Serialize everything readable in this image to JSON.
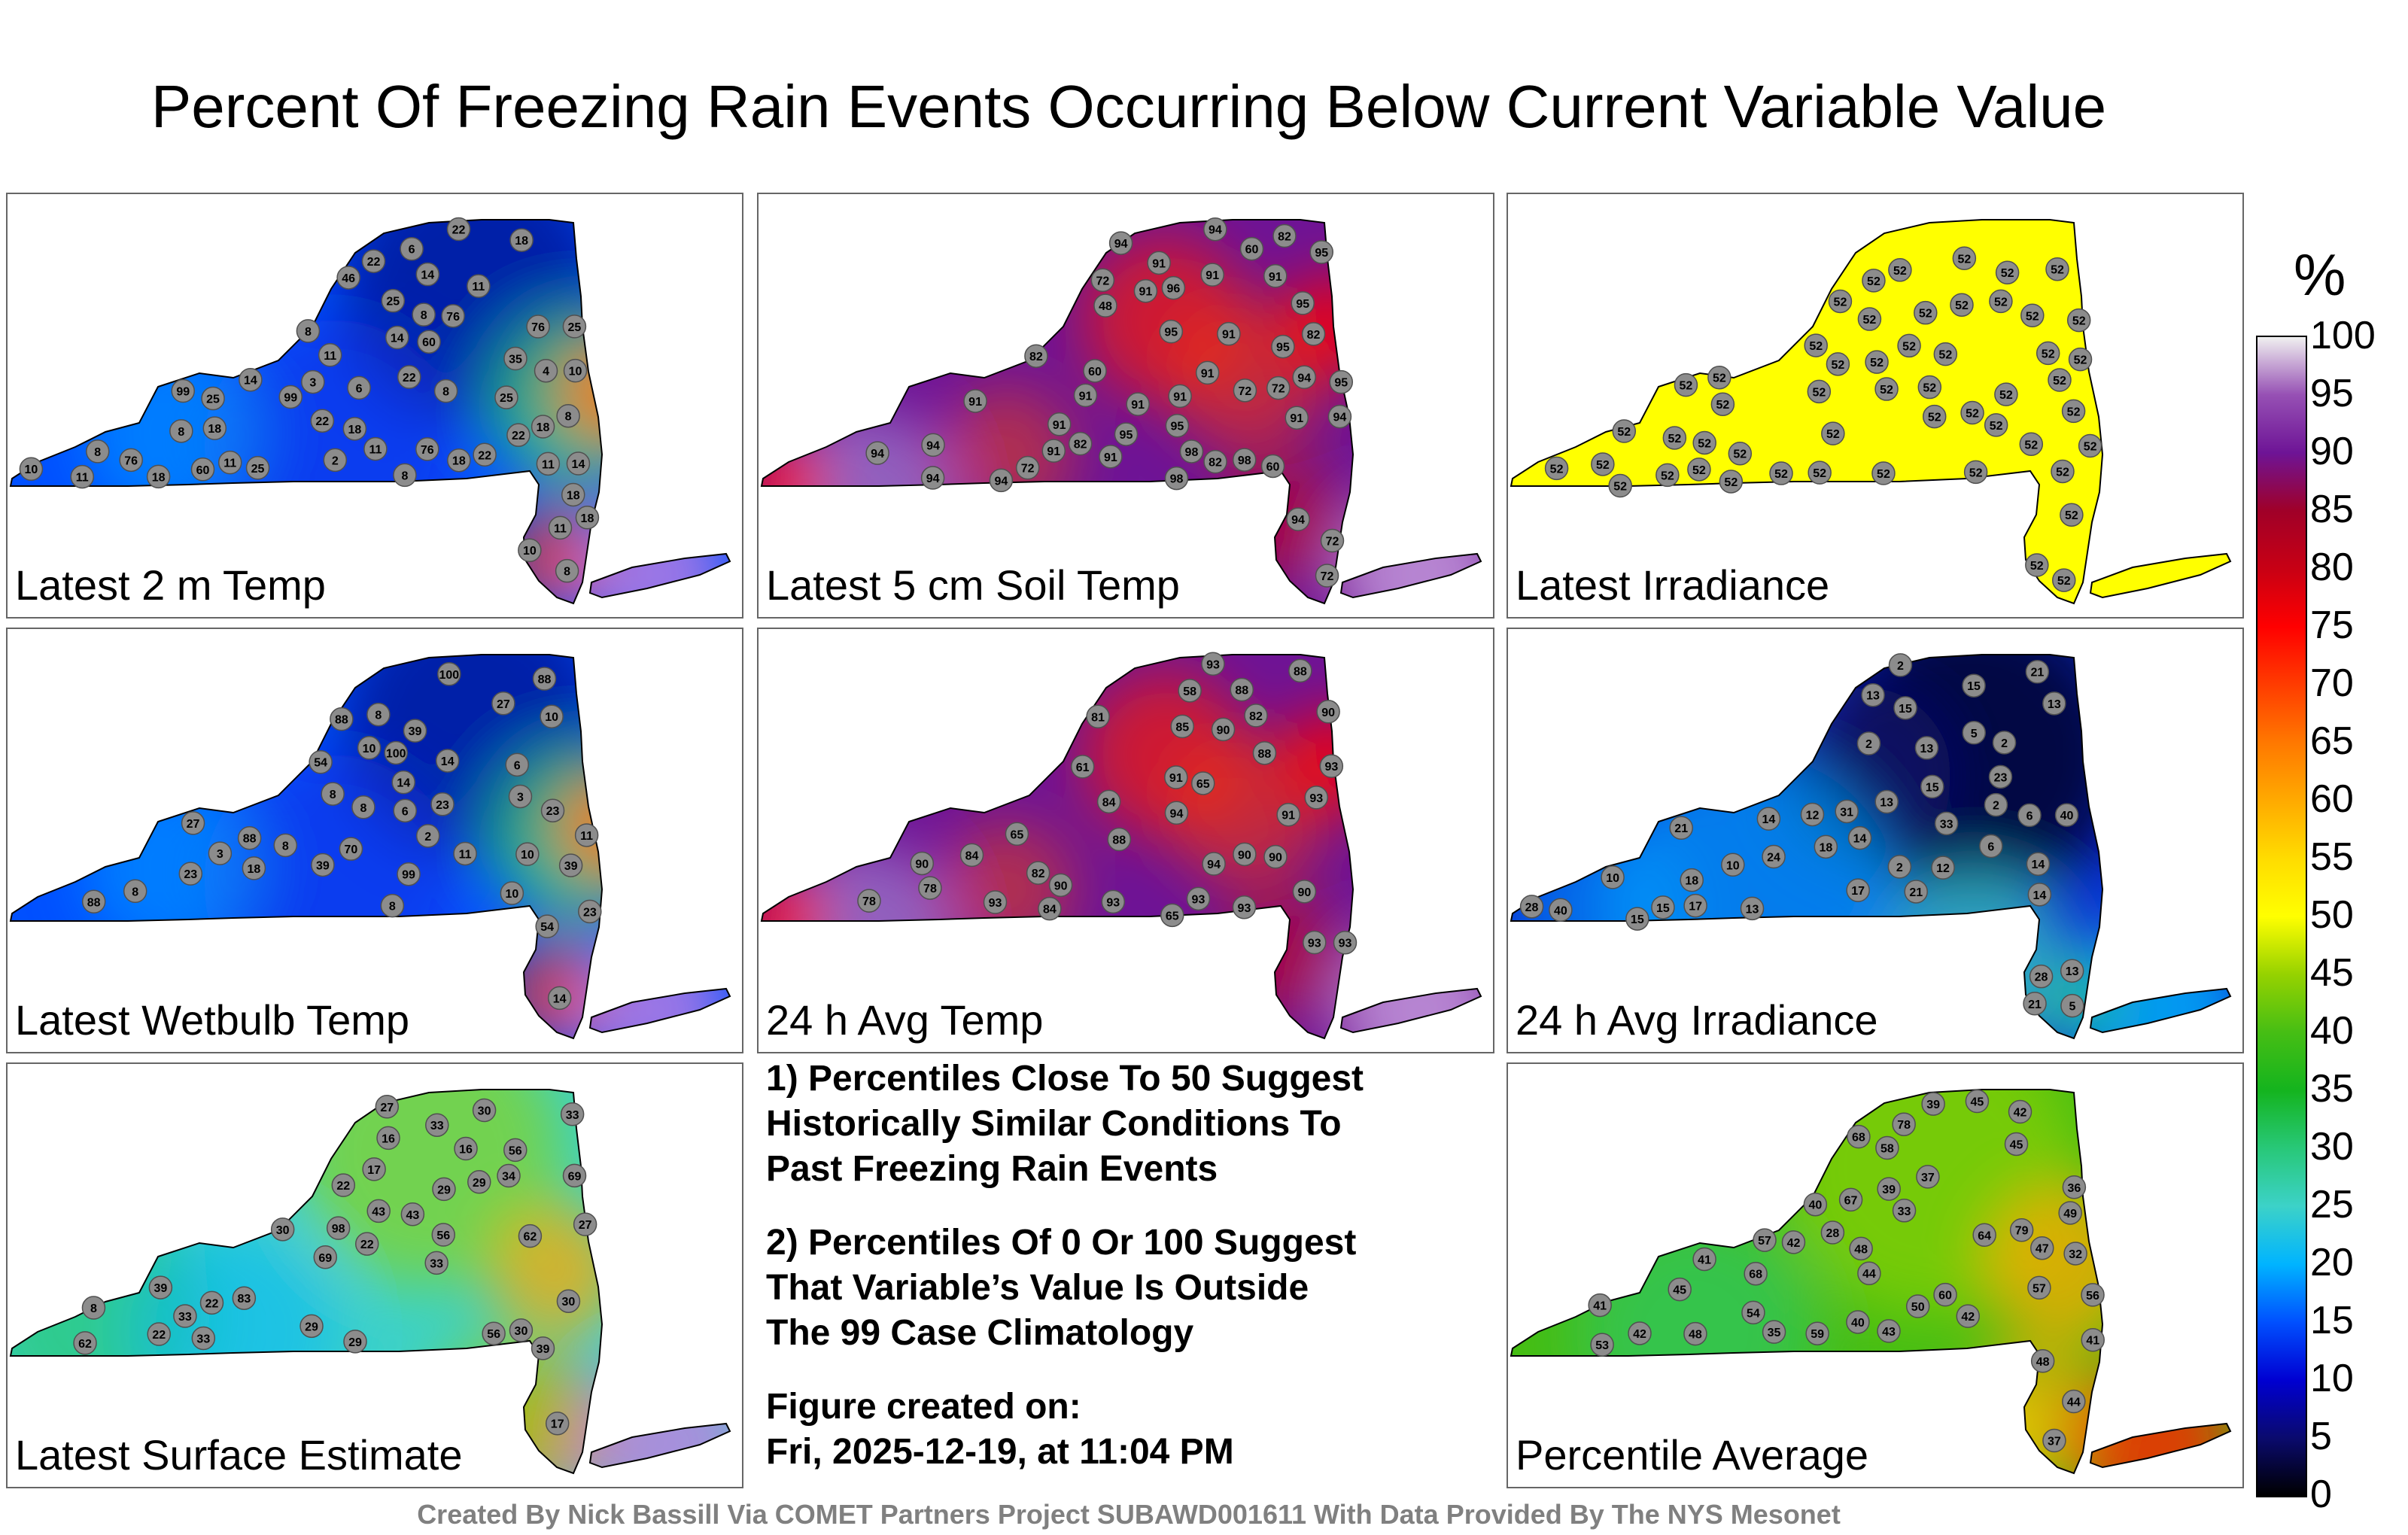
{
  "title": "Percent Of Freezing Rain Events Occurring Below Current Variable Value",
  "panels": [
    {
      "label": "Latest 2 m Temp",
      "palette": "cool",
      "values": [
        "25",
        "14",
        "11",
        "18",
        "22",
        "22",
        "11",
        "25",
        "18",
        "22",
        "25",
        "18",
        "11",
        "18",
        "11",
        "14",
        "18",
        "22",
        "3",
        "4",
        "8",
        "8",
        "2",
        "6",
        "6",
        "14",
        "8",
        "11",
        "10",
        "10",
        "18",
        "8",
        "11",
        "14",
        "11",
        "18",
        "8",
        "8",
        "8",
        "8",
        "10",
        "22",
        "18",
        "22",
        "25",
        "60",
        "76",
        "76",
        "25",
        "46",
        "60",
        "35",
        "76",
        "99",
        "99",
        "76"
      ]
    },
    {
      "label": "Latest 5 cm Soil Temp",
      "palette": "warm",
      "values": [
        "91",
        "95",
        "91",
        "94",
        "95",
        "91",
        "95",
        "72",
        "94",
        "91",
        "72",
        "72",
        "91",
        "94",
        "94",
        "91",
        "91",
        "94",
        "95",
        "82",
        "91",
        "48",
        "91",
        "91",
        "94",
        "95",
        "94",
        "91",
        "94",
        "91",
        "60",
        "72",
        "60",
        "82",
        "96",
        "72",
        "60",
        "72",
        "82",
        "95",
        "94",
        "91",
        "82",
        "91",
        "95",
        "82",
        "98",
        "98",
        "98"
      ]
    },
    {
      "label": "Latest Irradiance",
      "palette": "flat",
      "values": [
        "52",
        "52",
        "52",
        "52",
        "52",
        "52",
        "52",
        "52",
        "52",
        "52",
        "52",
        "52",
        "52",
        "52",
        "52",
        "52",
        "52",
        "52",
        "52",
        "52",
        "52",
        "52",
        "52",
        "52",
        "52",
        "52",
        "52",
        "52",
        "52",
        "52",
        "52",
        "52",
        "52",
        "52",
        "52",
        "52",
        "52",
        "52",
        "52",
        "52",
        "52",
        "52",
        "52",
        "52",
        "52",
        "52",
        "52",
        "52",
        "52",
        "52",
        "52",
        "52"
      ]
    },
    {
      "label": "Latest Wetbulb Temp",
      "palette": "cool",
      "values": [
        "27",
        "14",
        "23",
        "27",
        "14",
        "18",
        "39",
        "11",
        "23",
        "10",
        "10",
        "14",
        "8",
        "8",
        "3",
        "3",
        "6",
        "8",
        "2",
        "6",
        "10",
        "11",
        "8",
        "8",
        "8",
        "10",
        "23",
        "39",
        "54",
        "88",
        "99",
        "88",
        "70",
        "54",
        "39",
        "23",
        "100",
        "100",
        "88",
        "88"
      ]
    },
    {
      "label": "24 h Avg Temp",
      "palette": "warm",
      "values": [
        "88",
        "85",
        "88",
        "91",
        "84",
        "78",
        "65",
        "61",
        "82",
        "65",
        "58",
        "65",
        "78",
        "84",
        "90",
        "88",
        "90",
        "90",
        "90",
        "84",
        "82",
        "88",
        "93",
        "93",
        "93",
        "90",
        "90",
        "90",
        "91",
        "93",
        "93",
        "94",
        "94",
        "93",
        "93",
        "93",
        "93",
        "81"
      ]
    },
    {
      "label": "24 h Avg Irradiance",
      "palette": "dark",
      "values": [
        "6",
        "2",
        "14",
        "14",
        "13",
        "2",
        "2",
        "10",
        "2",
        "5",
        "5",
        "2",
        "12",
        "13",
        "12",
        "15",
        "13",
        "21",
        "10",
        "15",
        "13",
        "28",
        "17",
        "15",
        "15",
        "6",
        "14",
        "18",
        "13",
        "14",
        "23",
        "24",
        "33",
        "21",
        "18",
        "13",
        "31",
        "28",
        "21",
        "17",
        "40",
        "40",
        "21",
        "15"
      ]
    },
    {
      "label": "Latest Surface Estimate",
      "palette": "surf",
      "values": [
        "29",
        "22",
        "29",
        "30",
        "17",
        "33",
        "30",
        "33",
        "43",
        "39",
        "30",
        "29",
        "34",
        "33",
        "39",
        "33",
        "29",
        "27",
        "22",
        "17",
        "8",
        "22",
        "30",
        "16",
        "16",
        "22",
        "27",
        "33",
        "43",
        "56",
        "62",
        "62",
        "69",
        "83",
        "98",
        "56",
        "56",
        "69"
      ]
    }
  ],
  "notes": {
    "item1_line1": "1) Percentiles Close To 50 Suggest",
    "item1_line2": "Historically Similar Conditions To",
    "item1_line3": "Past Freezing Rain Events",
    "item2_line1": "2) Percentiles Of 0 Or 100 Suggest",
    "item2_line2": "That Variable’s Value Is Outside",
    "item2_line3": "The 99 Case Climatology",
    "created_label": "Figure created on:",
    "created_value": "Fri, 2025-12-19, at 11:04 PM"
  },
  "average_panel": {
    "label": "Percentile Average",
    "palette": "avg",
    "values": [
      "42",
      "41",
      "43",
      "58",
      "48",
      "39",
      "37",
      "64",
      "40",
      "41",
      "45",
      "37",
      "33",
      "41",
      "68",
      "49",
      "44",
      "42",
      "45",
      "54",
      "44",
      "60",
      "48",
      "47",
      "48",
      "50",
      "36",
      "39",
      "40",
      "32",
      "35",
      "42",
      "45",
      "42",
      "57",
      "67",
      "59",
      "56",
      "53",
      "57",
      "68",
      "78",
      "79",
      "28"
    ]
  },
  "colorbar": {
    "unit": "%",
    "ticks": [
      "0",
      "5",
      "10",
      "15",
      "20",
      "25",
      "30",
      "35",
      "40",
      "45",
      "50",
      "55",
      "60",
      "65",
      "70",
      "75",
      "80",
      "85",
      "90",
      "95",
      "100"
    ]
  },
  "credit": "Created By Nick Bassill Via COMET Partners Project SUBAWD001611 With Data Provided By The NYS Mesonet"
}
